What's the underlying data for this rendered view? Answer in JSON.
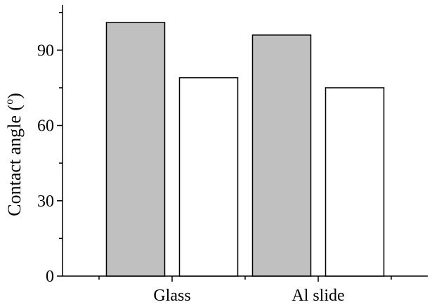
{
  "chart_data": {
    "type": "bar",
    "categories": [
      "Glass",
      "Al slide"
    ],
    "series": [
      {
        "values": [
          101,
          96
        ],
        "fill": "#c0c0c0"
      },
      {
        "values": [
          79,
          75
        ],
        "fill": "#ffffff"
      }
    ],
    "xlabel": "",
    "ylabel": "Contact angle (",
    "ylabel_degree": "o",
    "ylabel_suffix": ")",
    "ylim": [
      0,
      108
    ],
    "yticks": [
      0,
      30,
      60,
      90
    ],
    "yminor_step": 15,
    "ytick_labels": [
      "0",
      "30",
      "60",
      "90"
    ],
    "grid": false,
    "legend": "none",
    "colors": {
      "axis": "#000000",
      "bar_stroke": "#000000"
    }
  }
}
